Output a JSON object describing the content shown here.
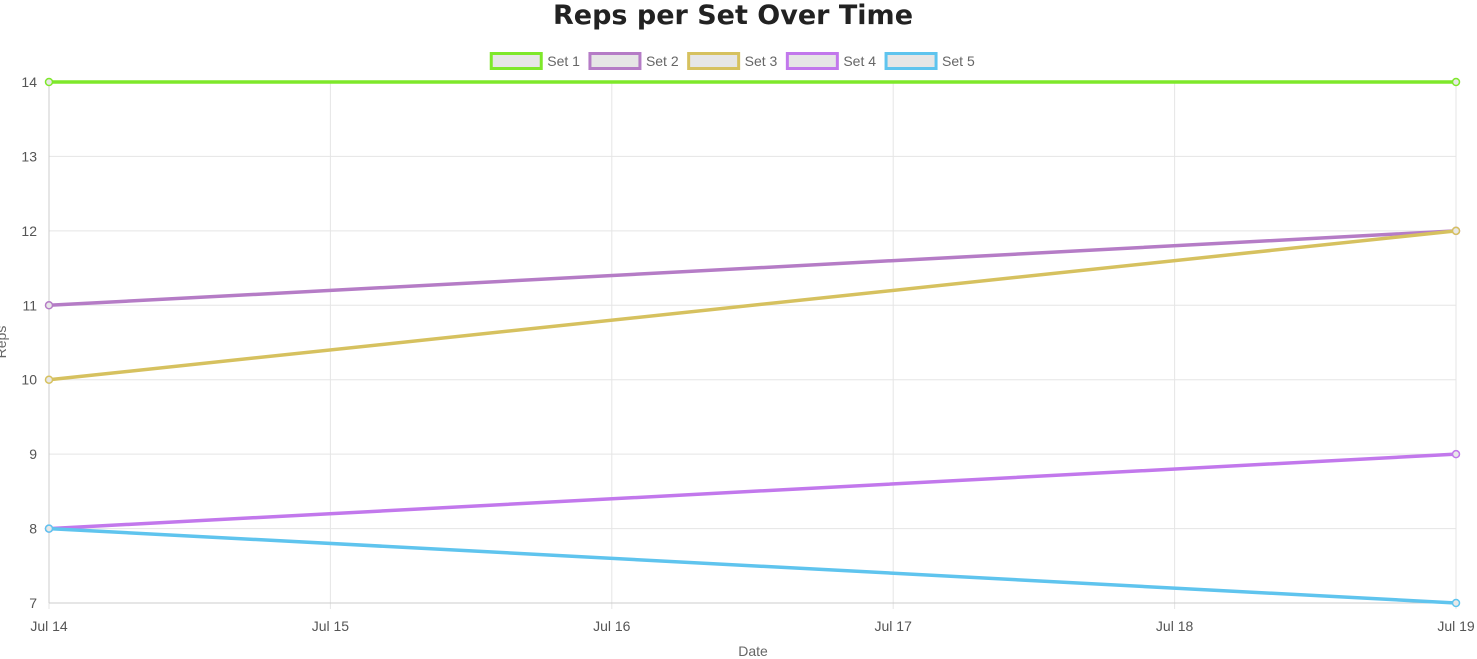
{
  "chart_data": {
    "type": "line",
    "title": "Reps per Set Over Time",
    "xlabel": "Date",
    "ylabel": "Reps",
    "x": [
      "Jul 14",
      "Jul 15",
      "Jul 16",
      "Jul 17",
      "Jul 18",
      "Jul 19"
    ],
    "ylim": [
      7,
      14
    ],
    "yticks": [
      7,
      8,
      9,
      10,
      11,
      12,
      13,
      14
    ],
    "grid": true,
    "legend_position": "top",
    "series": [
      {
        "name": "Set 1",
        "color": "#7ee82a",
        "points": [
          {
            "x": "Jul 14",
            "y": 14
          },
          {
            "x": "Jul 19",
            "y": 14
          }
        ]
      },
      {
        "name": "Set 2",
        "color": "#b57cc6",
        "points": [
          {
            "x": "Jul 14",
            "y": 11
          },
          {
            "x": "Jul 19",
            "y": 12
          }
        ]
      },
      {
        "name": "Set 3",
        "color": "#d6c15f",
        "points": [
          {
            "x": "Jul 14",
            "y": 10
          },
          {
            "x": "Jul 19",
            "y": 12
          }
        ]
      },
      {
        "name": "Set 4",
        "color": "#c278ec",
        "points": [
          {
            "x": "Jul 14",
            "y": 8
          },
          {
            "x": "Jul 19",
            "y": 9
          }
        ]
      },
      {
        "name": "Set 5",
        "color": "#5fc4ee",
        "points": [
          {
            "x": "Jul 14",
            "y": 8
          },
          {
            "x": "Jul 19",
            "y": 7
          }
        ]
      }
    ]
  }
}
